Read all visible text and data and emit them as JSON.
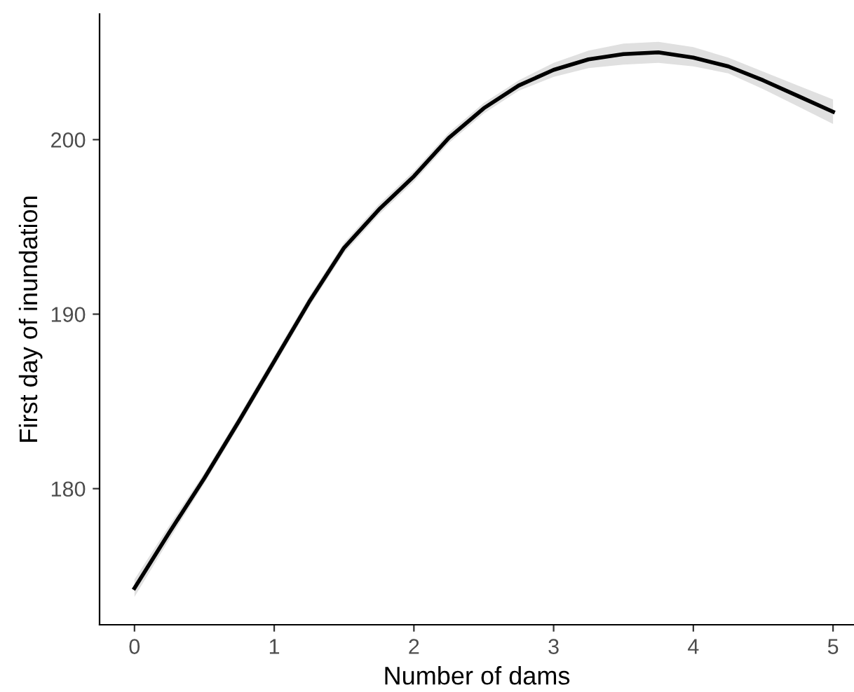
{
  "chart_data": {
    "type": "line",
    "xlabel": "Number of dams",
    "ylabel": "First day of inundation",
    "x": [
      0,
      0.25,
      0.5,
      0.75,
      1,
      1.25,
      1.5,
      1.75,
      2,
      2.25,
      2.5,
      2.75,
      3,
      3.25,
      3.5,
      3.75,
      4,
      4.25,
      4.5,
      4.75,
      5
    ],
    "series": [
      {
        "color": "#000000",
        "values": [
          174.3,
          177.5,
          180.6,
          183.9,
          187.3,
          190.7,
          193.8,
          196.0,
          197.9,
          200.1,
          201.8,
          203.1,
          204.0,
          204.6,
          204.9,
          205.0,
          204.7,
          204.2,
          203.4,
          202.5,
          201.6
        ],
        "lower": [
          173.8,
          177.1,
          180.3,
          183.6,
          187.0,
          190.4,
          193.5,
          195.7,
          197.6,
          199.8,
          201.5,
          202.8,
          203.6,
          204.1,
          204.3,
          204.4,
          204.2,
          203.8,
          202.9,
          201.9,
          200.9
        ],
        "upper": [
          174.8,
          177.9,
          180.9,
          184.2,
          187.6,
          191.0,
          194.1,
          196.3,
          198.2,
          200.4,
          202.1,
          203.4,
          204.4,
          205.1,
          205.5,
          205.6,
          205.3,
          204.7,
          203.9,
          203.1,
          202.3
        ]
      }
    ],
    "xlim": [
      -0.25,
      5.15
    ],
    "ylim": [
      172.2,
      207.2
    ],
    "xticks": [
      0,
      1,
      2,
      3,
      4,
      5
    ],
    "yticks": [
      180,
      190,
      200
    ],
    "marker": "none",
    "line_style": "solid"
  }
}
